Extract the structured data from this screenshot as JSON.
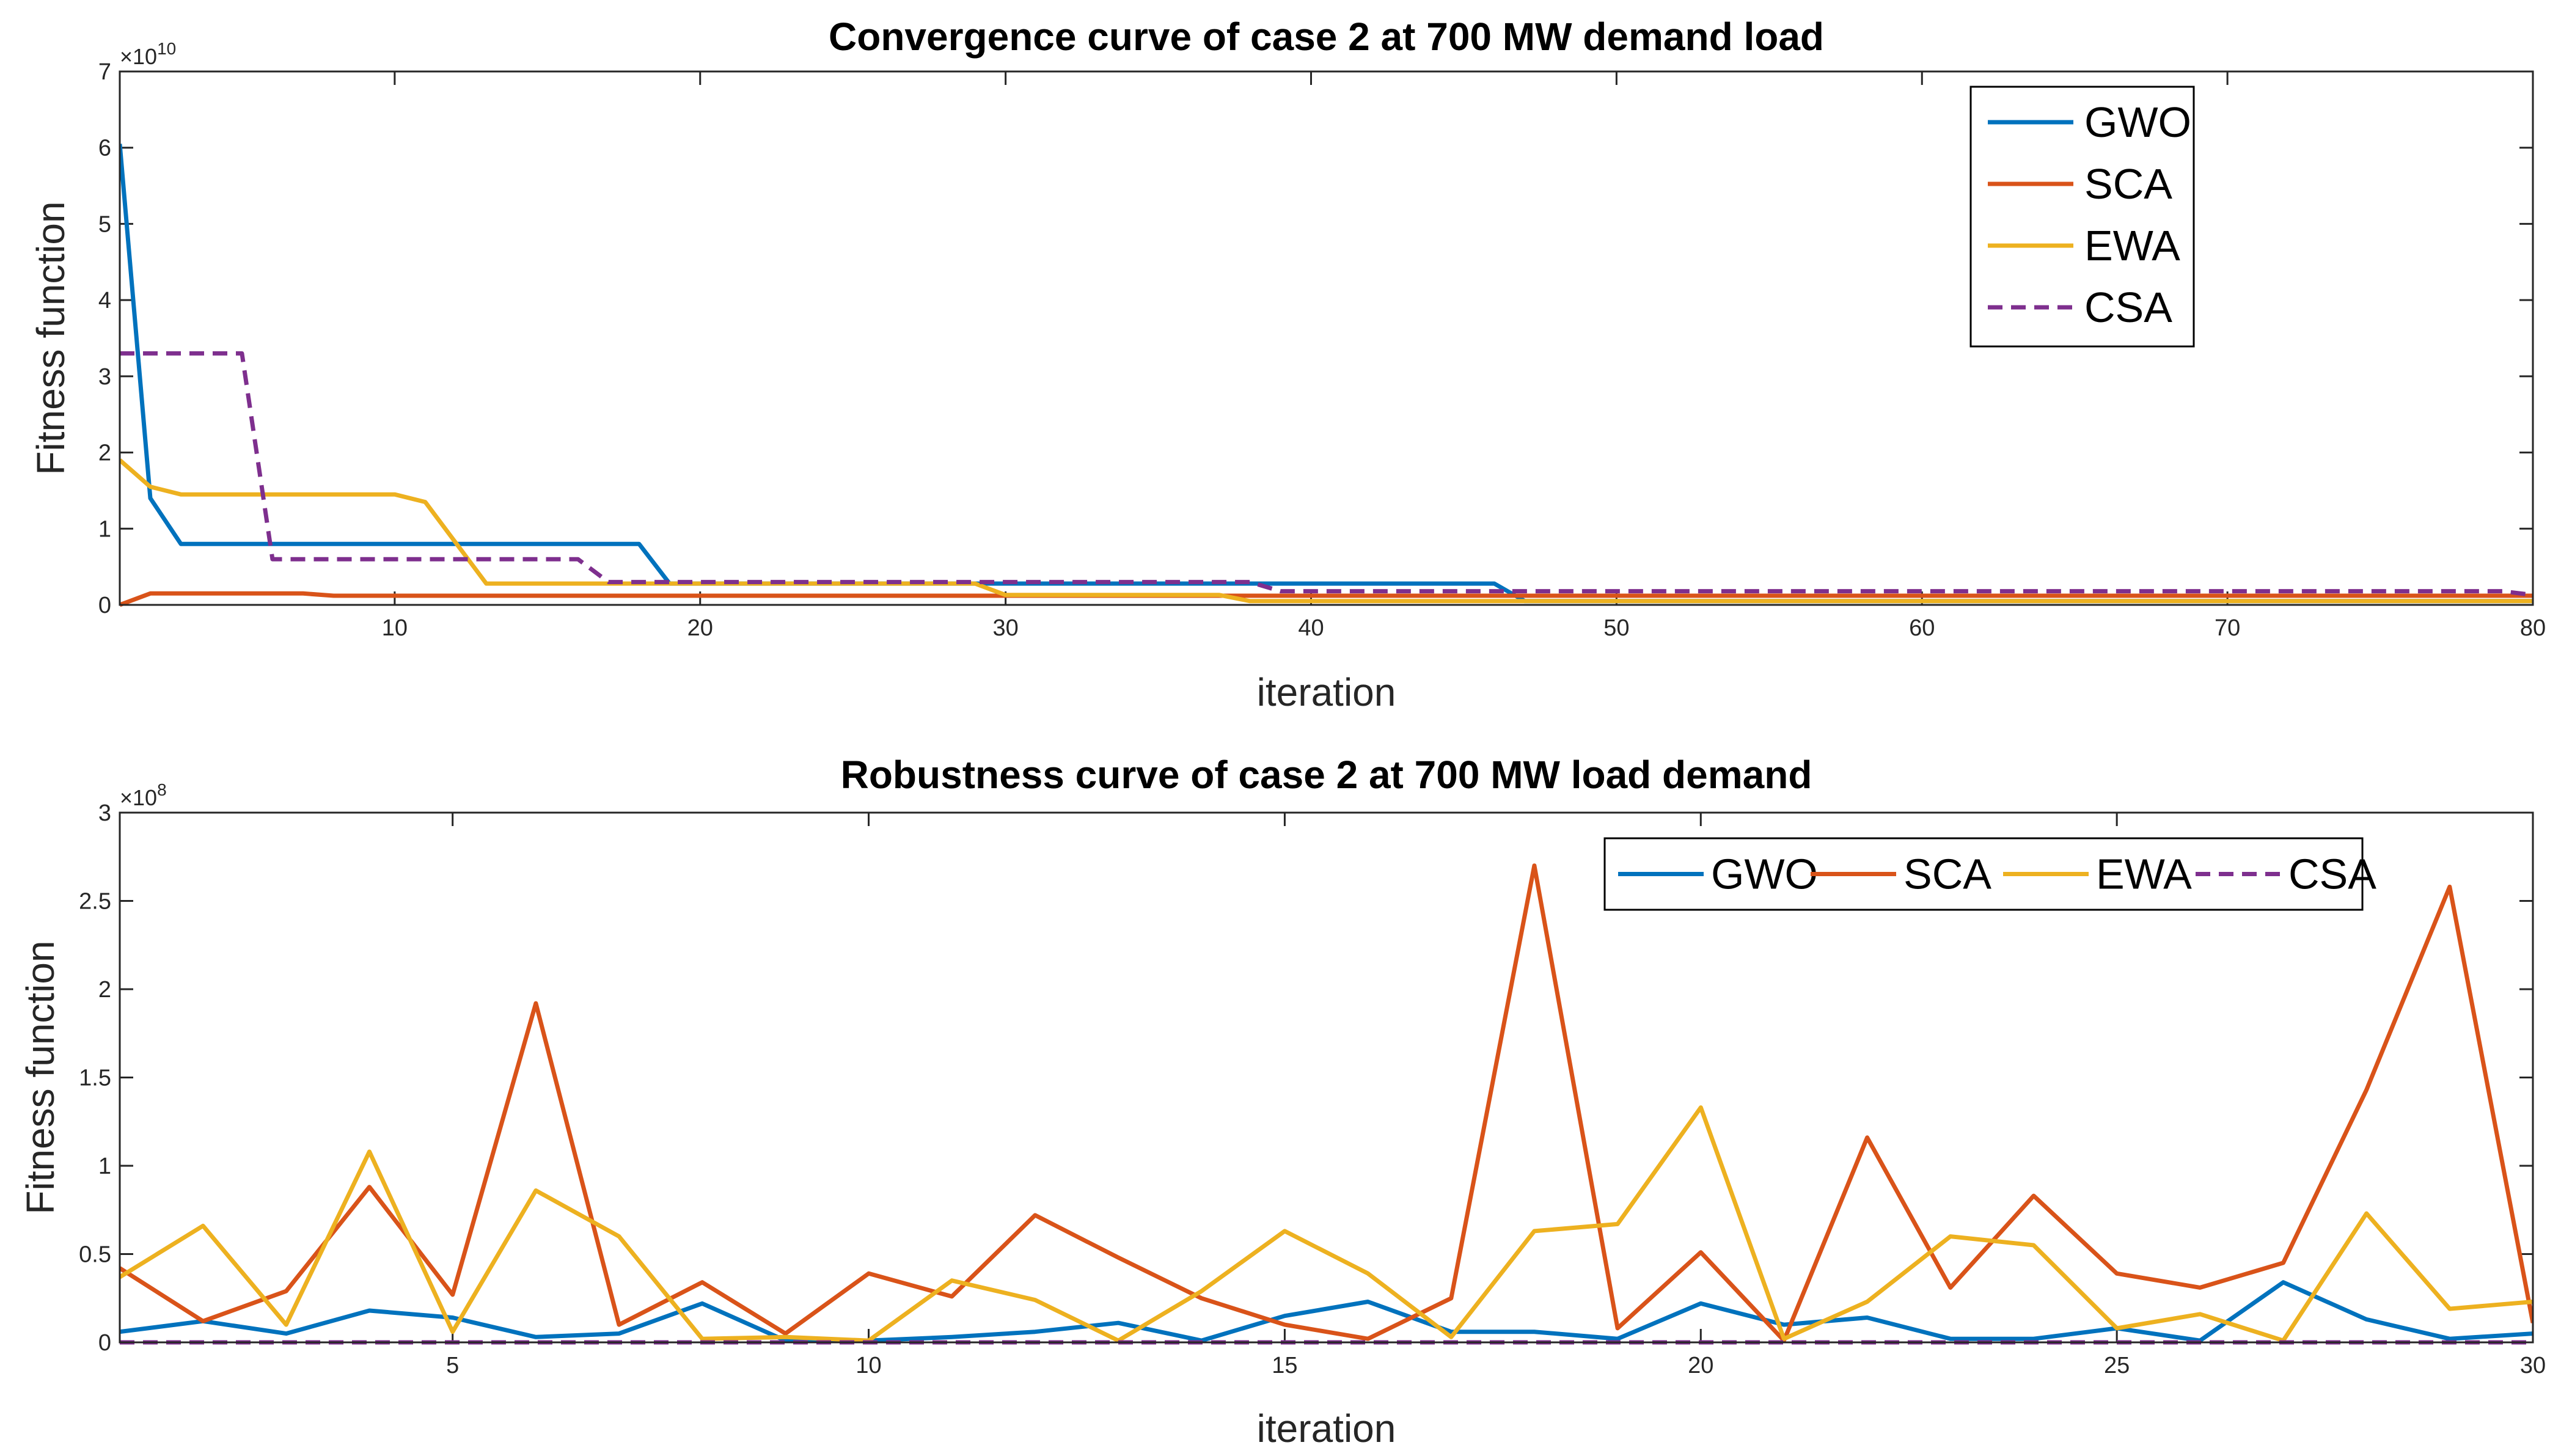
{
  "colors": {
    "GWO": "#0072BD",
    "SCA": "#D95319",
    "EWA": "#EDB120",
    "CSA": "#7E2F8E",
    "axis": "#262626"
  },
  "chart_data": [
    {
      "type": "line",
      "title": "Convergence curve of case 2 at 700 MW demand load",
      "xlabel": "iteration",
      "ylabel": "Fitness function",
      "exponent": "10",
      "exponent_prefix": "×10",
      "xlim": [
        1,
        80
      ],
      "ylim": [
        0,
        7
      ],
      "xticks": [
        10,
        20,
        30,
        40,
        50,
        60,
        70,
        80
      ],
      "yticks": [
        0,
        1,
        2,
        3,
        4,
        5,
        6,
        7
      ],
      "legend_position": "top-right",
      "legend_orientation": "vertical",
      "series": [
        {
          "name": "GWO",
          "style": "solid",
          "points": [
            [
              1,
              6.05
            ],
            [
              2,
              1.4
            ],
            [
              3,
              0.8
            ],
            [
              18,
              0.8
            ],
            [
              19,
              0.28
            ],
            [
              45,
              0.28
            ],
            [
              46,
              0.28
            ],
            [
              47,
              0.05
            ],
            [
              80,
              0.05
            ]
          ]
        },
        {
          "name": "SCA",
          "style": "solid",
          "points": [
            [
              1,
              0.0
            ],
            [
              2,
              0.15
            ],
            [
              7,
              0.15
            ],
            [
              8,
              0.12
            ],
            [
              80,
              0.12
            ]
          ]
        },
        {
          "name": "EWA",
          "style": "solid",
          "points": [
            [
              1,
              1.9
            ],
            [
              2,
              1.55
            ],
            [
              3,
              1.45
            ],
            [
              10,
              1.45
            ],
            [
              11,
              1.35
            ],
            [
              13,
              0.28
            ],
            [
              29,
              0.28
            ],
            [
              30,
              0.13
            ],
            [
              37,
              0.13
            ],
            [
              38,
              0.05
            ],
            [
              80,
              0.05
            ]
          ]
        },
        {
          "name": "CSA",
          "style": "dashed",
          "points": [
            [
              1,
              3.3
            ],
            [
              5,
              3.3
            ],
            [
              6,
              0.6
            ],
            [
              16,
              0.6
            ],
            [
              17,
              0.3
            ],
            [
              38,
              0.3
            ],
            [
              39,
              0.18
            ],
            [
              79,
              0.18
            ],
            [
              80,
              0.13
            ]
          ]
        }
      ]
    },
    {
      "type": "line",
      "title": "Robustness curve of case 2 at 700 MW load demand",
      "xlabel": "iteration",
      "ylabel": "Fitness function",
      "exponent": "8",
      "exponent_prefix": "×10",
      "xlim": [
        1,
        30
      ],
      "ylim": [
        0,
        3
      ],
      "xticks": [
        5,
        10,
        15,
        20,
        25,
        30
      ],
      "yticks": [
        0,
        0.5,
        1,
        1.5,
        2,
        2.5,
        3
      ],
      "ytick_labels": [
        "0",
        "0.5",
        "1",
        "1.5",
        "2",
        "2.5",
        "3"
      ],
      "legend_position": "top-right",
      "legend_orientation": "horizontal",
      "series": [
        {
          "name": "GWO",
          "style": "solid",
          "x": [
            1,
            2,
            3,
            4,
            5,
            6,
            7,
            8,
            9,
            10,
            11,
            12,
            13,
            14,
            15,
            16,
            17,
            18,
            19,
            20,
            21,
            22,
            23,
            24,
            25,
            26,
            27,
            28,
            29,
            30
          ],
          "y": [
            0.06,
            0.12,
            0.05,
            0.18,
            0.14,
            0.03,
            0.05,
            0.22,
            0.01,
            0.01,
            0.03,
            0.06,
            0.11,
            0.01,
            0.15,
            0.23,
            0.06,
            0.06,
            0.02,
            0.22,
            0.1,
            0.14,
            0.02,
            0.02,
            0.08,
            0.01,
            0.34,
            0.13,
            0.02,
            0.05
          ]
        },
        {
          "name": "SCA",
          "style": "solid",
          "x": [
            1,
            2,
            3,
            4,
            5,
            6,
            7,
            8,
            9,
            10,
            11,
            12,
            13,
            14,
            15,
            16,
            17,
            18,
            19,
            20,
            21,
            22,
            23,
            24,
            25,
            26,
            27,
            28,
            29,
            30
          ],
          "y": [
            0.42,
            0.12,
            0.29,
            0.88,
            0.27,
            1.92,
            0.1,
            0.34,
            0.05,
            0.39,
            0.26,
            0.72,
            0.48,
            0.25,
            0.1,
            0.02,
            0.25,
            2.7,
            0.08,
            0.51,
            0.01,
            1.16,
            0.31,
            0.83,
            0.39,
            0.31,
            0.45,
            1.43,
            2.58,
            0.11
          ]
        },
        {
          "name": "EWA",
          "style": "solid",
          "x": [
            1,
            2,
            3,
            4,
            5,
            6,
            7,
            8,
            9,
            10,
            11,
            12,
            13,
            14,
            15,
            16,
            17,
            18,
            19,
            20,
            21,
            22,
            23,
            24,
            25,
            26,
            27,
            28,
            29,
            30
          ],
          "y": [
            0.37,
            0.66,
            0.1,
            1.08,
            0.06,
            0.86,
            0.6,
            0.02,
            0.03,
            0.01,
            0.35,
            0.24,
            0.01,
            0.29,
            0.63,
            0.39,
            0.03,
            0.63,
            0.67,
            1.33,
            0.02,
            0.23,
            0.6,
            0.55,
            0.08,
            0.16,
            0.01,
            0.73,
            0.19,
            0.23
          ]
        },
        {
          "name": "CSA",
          "style": "dashed",
          "x": [
            1,
            2,
            3,
            4,
            5,
            6,
            7,
            8,
            9,
            10,
            11,
            12,
            13,
            14,
            15,
            16,
            17,
            18,
            19,
            20,
            21,
            22,
            23,
            24,
            25,
            26,
            27,
            28,
            29,
            30
          ],
          "y": [
            0,
            0,
            0,
            0,
            0,
            0,
            0,
            0,
            0,
            0,
            0,
            0,
            0,
            0,
            0,
            0,
            0,
            0,
            0,
            0,
            0,
            0,
            0,
            0,
            0,
            0,
            0,
            0,
            0,
            0
          ]
        }
      ]
    }
  ]
}
